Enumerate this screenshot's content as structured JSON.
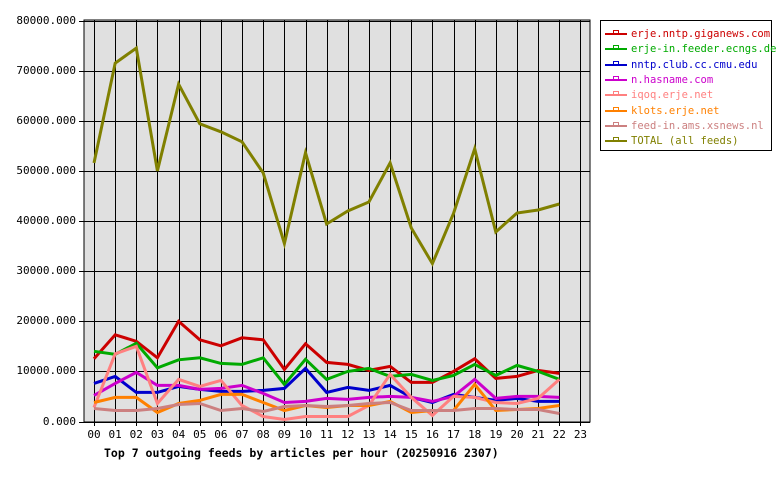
{
  "chart_data": {
    "type": "line",
    "title": "Top 7 outgoing feeds by articles per hour (20250916 2307)",
    "xlabel": "",
    "ylabel": "",
    "ylim": [
      0,
      80000
    ],
    "grid": true,
    "legend_position": "right",
    "x": [
      "00",
      "01",
      "02",
      "03",
      "04",
      "05",
      "06",
      "07",
      "08",
      "09",
      "10",
      "11",
      "12",
      "13",
      "14",
      "15",
      "16",
      "17",
      "18",
      "19",
      "20",
      "21",
      "22",
      "23"
    ],
    "y_ticks": [
      "0.000",
      "10000.000",
      "20000.000",
      "30000.000",
      "40000.000",
      "50000.000",
      "60000.000",
      "70000.000",
      "80000.000"
    ],
    "series": [
      {
        "name": "erje.nntp.giganews.com",
        "color": "#cc0000",
        "values": [
          12500,
          17300,
          16000,
          12700,
          20000,
          16300,
          15100,
          16700,
          16300,
          10400,
          15500,
          11800,
          11400,
          10200,
          11000,
          7800,
          7800,
          10000,
          12500,
          8600,
          9000,
          10200,
          9600
        ]
      },
      {
        "name": "erje-in.feeder.ecngs.de",
        "color": "#00aa00",
        "values": [
          14000,
          13400,
          15600,
          10700,
          12300,
          12700,
          11600,
          11400,
          12700,
          7400,
          12400,
          8400,
          10000,
          10600,
          9000,
          9400,
          8200,
          9200,
          11400,
          9200,
          11200,
          10000,
          8400
        ]
      },
      {
        "name": "nntp.club.cc.cmu.edu",
        "color": "#0000cc",
        "values": [
          7600,
          9000,
          5800,
          5800,
          7000,
          6400,
          6000,
          6000,
          6200,
          6600,
          10600,
          5800,
          6800,
          6200,
          7200,
          4800,
          3800,
          5400,
          4800,
          4200,
          4600,
          4000,
          4000
        ]
      },
      {
        "name": "n.hasname.com",
        "color": "#cc00cc",
        "values": [
          5200,
          7600,
          9800,
          7200,
          7200,
          6400,
          6600,
          7200,
          5600,
          3800,
          4000,
          4600,
          4400,
          4800,
          5000,
          4800,
          4000,
          5000,
          8400,
          4600,
          5000,
          5000,
          4800
        ]
      },
      {
        "name": "iqoq.erje.net",
        "color": "#ff8080",
        "values": [
          2800,
          13500,
          15000,
          3600,
          8400,
          7000,
          8200,
          3200,
          1000,
          400,
          1000,
          1000,
          1000,
          3200,
          9400,
          4800,
          1200,
          5000,
          4800,
          3800,
          3600,
          4600,
          8400
        ]
      },
      {
        "name": "klots.erje.net",
        "color": "#ff8000",
        "values": [
          3800,
          4800,
          4800,
          1800,
          3600,
          4200,
          5400,
          5400,
          3800,
          2200,
          3200,
          2800,
          3200,
          3200,
          4000,
          1800,
          2200,
          2200,
          7400,
          2200,
          2400,
          2600,
          3200
        ]
      },
      {
        "name": "feed-in.ams.xsnews.nl",
        "color": "#cc8080",
        "values": [
          2600,
          2200,
          2200,
          2600,
          3400,
          3600,
          2200,
          2600,
          2000,
          3000,
          3200,
          3000,
          3200,
          3600,
          3800,
          2200,
          2200,
          2200,
          2600,
          2600,
          2400,
          2400,
          1600
        ]
      },
      {
        "name": "TOTAL (all feeds)",
        "color": "#808000",
        "values": [
          51600,
          71500,
          74500,
          50000,
          67300,
          59400,
          57800,
          55800,
          49600,
          35500,
          53600,
          39400,
          42000,
          43800,
          51600,
          38600,
          31500,
          41500,
          54400,
          37800,
          41600,
          42200,
          43400
        ]
      }
    ]
  }
}
